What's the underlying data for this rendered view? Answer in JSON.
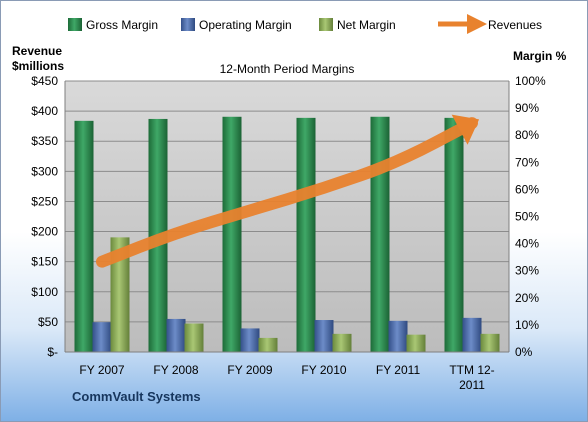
{
  "chart_data": {
    "type": "bar",
    "title": "12-Month Period Margins",
    "categories": [
      "FY 2007",
      "FY 2008",
      "FY 2009",
      "FY 2010",
      "FY 2011",
      "TTM 12-2011"
    ],
    "category_lines": [
      [
        "FY 2007"
      ],
      [
        "FY 2008"
      ],
      [
        "FY 2009"
      ],
      [
        "FY 2010"
      ],
      [
        "FY 2011"
      ],
      [
        "TTM 12-",
        "2011"
      ]
    ],
    "y_left": {
      "label_lines": [
        "Revenue",
        "$millions"
      ],
      "ticks": [
        "$-",
        "$50",
        "$100",
        "$150",
        "$200",
        "$250",
        "$300",
        "$350",
        "$400",
        "$450"
      ],
      "range": [
        0,
        450
      ]
    },
    "y_right": {
      "label": "Margin %",
      "ticks": [
        "0%",
        "10%",
        "20%",
        "30%",
        "40%",
        "50%",
        "60%",
        "70%",
        "80%",
        "90%",
        "100%"
      ],
      "range": [
        0,
        100
      ]
    },
    "series": [
      {
        "name": "Gross Margin",
        "type": "bar",
        "axis": "right",
        "color": "#2e8b4e",
        "values": [
          85.3,
          86.0,
          86.8,
          86.4,
          86.8,
          86.4
        ]
      },
      {
        "name": "Operating Margin",
        "type": "bar",
        "axis": "right",
        "color": "#4f6fae",
        "values": [
          11.0,
          12.2,
          8.7,
          11.8,
          11.5,
          12.6
        ]
      },
      {
        "name": "Net Margin",
        "type": "bar",
        "axis": "right",
        "color": "#8db05a",
        "values": [
          42.3,
          10.5,
          5.2,
          6.7,
          6.4,
          6.7
        ]
      },
      {
        "name": "Revenues",
        "type": "line",
        "axis": "left",
        "color": "#e8822e",
        "values": [
          150,
          198,
          235,
          272,
          315,
          380
        ]
      }
    ],
    "legend_position": "top",
    "grid": true
  },
  "footer": {
    "company": "CommVault Systems"
  }
}
